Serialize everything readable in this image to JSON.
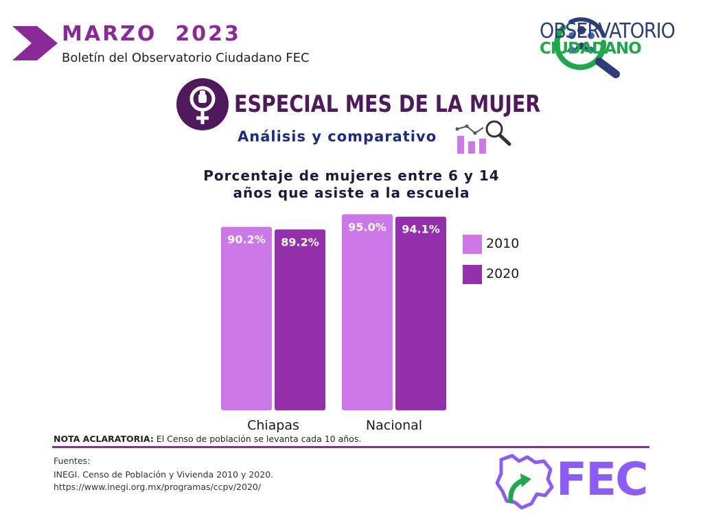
{
  "header": {
    "month": "MARZO  2023",
    "bulletin": "Boletín del Observatorio Ciudadano FEC"
  },
  "logo": {
    "line1": "OBSERVATORIO",
    "line2": "CIUDADANO"
  },
  "special": {
    "title": "ESPECIAL MES DE LA MUJER",
    "subtitle": "Análisis y comparativo"
  },
  "chart_data": {
    "type": "bar",
    "title_line1": "Porcentaje de mujeres entre 6 y 14",
    "title_line2": "años que asiste a la escuela",
    "categories": [
      "Chiapas",
      "Nacional"
    ],
    "series": [
      {
        "name": "2010",
        "values": [
          90.2,
          95.0
        ],
        "labels": [
          "90.2%",
          "95.0%"
        ],
        "color": "#cd78e8"
      },
      {
        "name": "2020",
        "values": [
          89.2,
          94.1
        ],
        "labels": [
          "89.2%",
          "94.1%"
        ],
        "color": "#9430ab"
      }
    ],
    "ylim": [
      0,
      100
    ],
    "grid": false,
    "legend_position": "right"
  },
  "note": {
    "label": "NOTA ACLARATORIA:",
    "text": " El Censo de población se levanta cada 10 años."
  },
  "sources": {
    "heading": "Fuentes:",
    "line1": "INEGI. Censo de Población y Vivienda 2010 y 2020.",
    "line2": "https://www.inegi.org.mx/programas/ccpv/2020/"
  },
  "brand": {
    "fec": "FEC",
    "purple": "#8a2a98",
    "green": "#1fa84a"
  }
}
